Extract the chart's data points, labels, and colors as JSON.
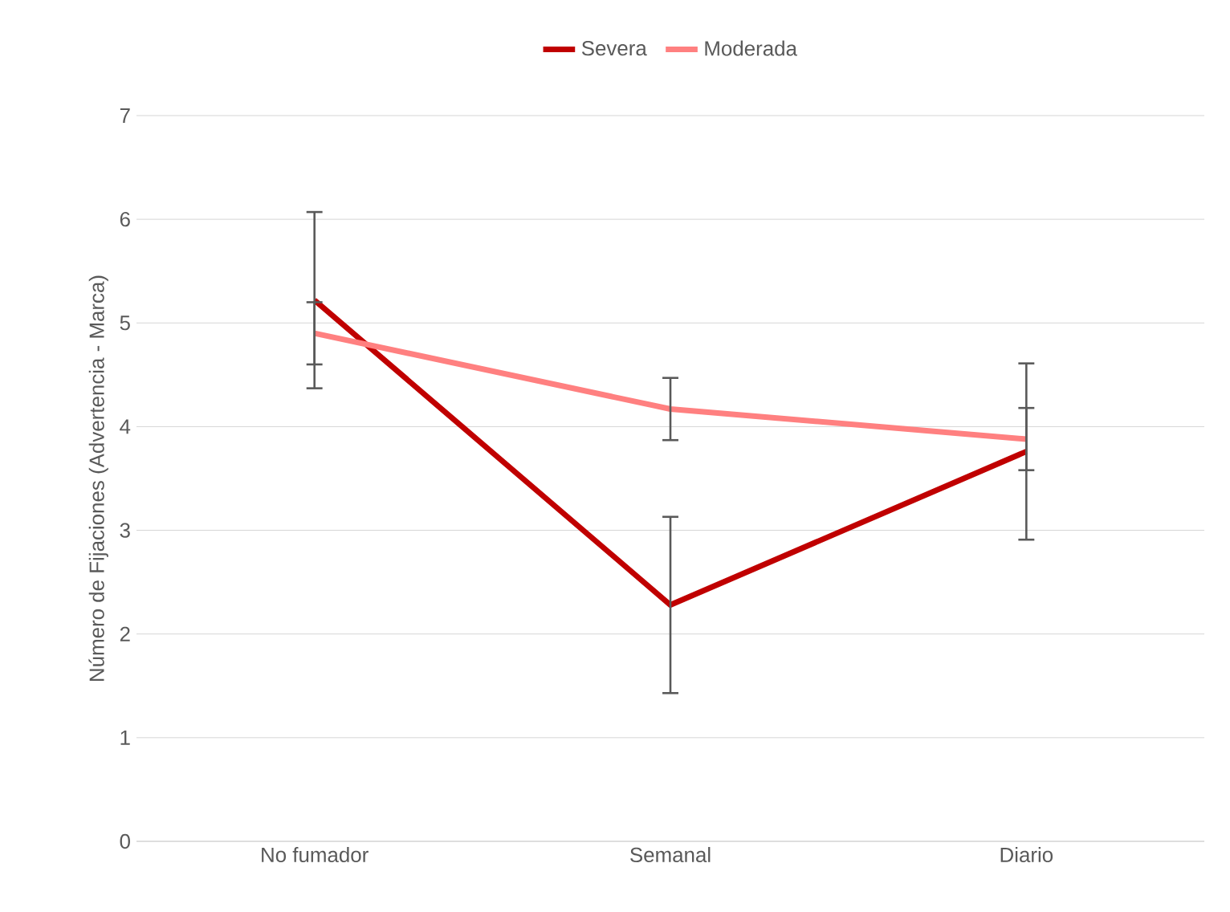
{
  "chart_data": {
    "type": "line",
    "ylabel": "Número de Fijaciones (Advertencia - Marca)",
    "categories": [
      "No fumador",
      "Semanal",
      "Diario"
    ],
    "series": [
      {
        "name": "Severa",
        "color": "#c00000",
        "values": [
          5.22,
          2.28,
          3.76
        ],
        "errors": [
          0.85,
          0.85,
          0.85
        ]
      },
      {
        "name": "Moderada",
        "color": "#ff8080",
        "values": [
          4.9,
          4.17,
          3.88
        ],
        "errors": [
          0.3,
          0.3,
          0.3
        ]
      }
    ],
    "ylim": [
      0,
      7
    ],
    "yticks": [
      0,
      1,
      2,
      3,
      4,
      5,
      6,
      7
    ],
    "grid": "y",
    "legend": "top",
    "marker": "none",
    "line_style": "solid"
  }
}
